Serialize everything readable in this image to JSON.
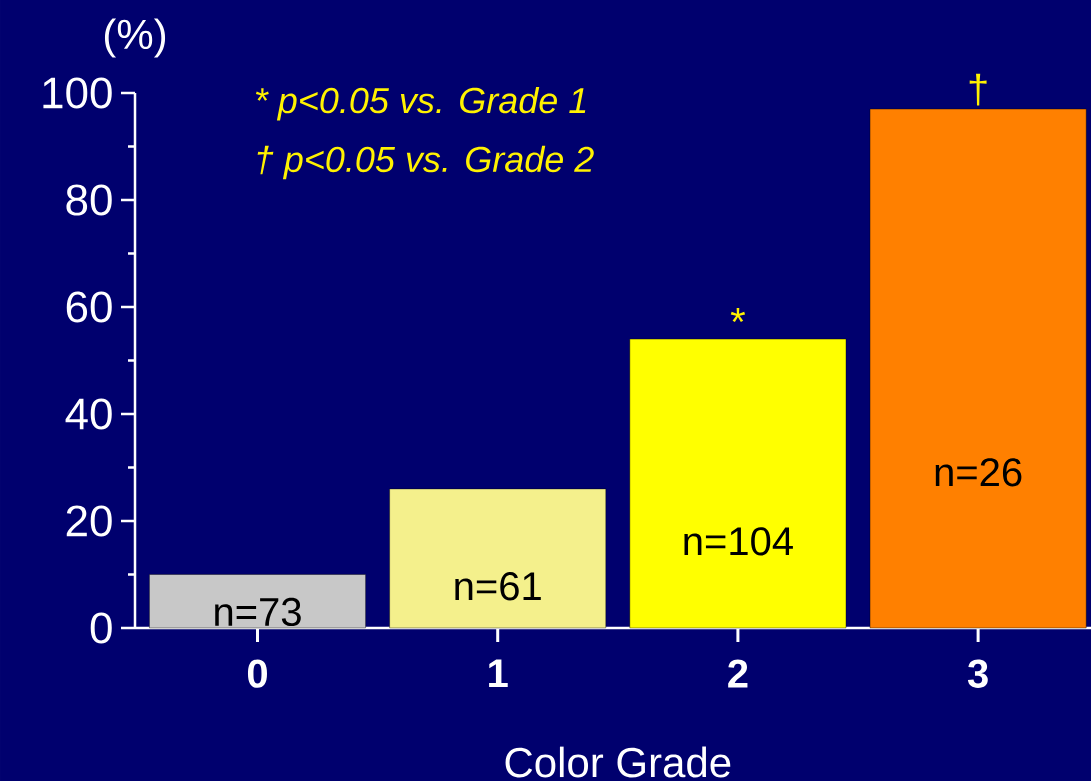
{
  "chart_data": {
    "type": "bar",
    "categories": [
      "0",
      "1",
      "2",
      "3"
    ],
    "values": [
      10,
      26,
      54,
      97
    ],
    "colors": [
      "#c8c8c8",
      "#f4f08c",
      "#ffff00",
      "#ff8000"
    ],
    "ylabel": "(%)",
    "xlabel": "Color Grade",
    "ylim": [
      0,
      100
    ],
    "yticks": [
      0,
      20,
      40,
      60,
      80,
      100
    ],
    "annotations": [
      "* p<0.05 vs. Grade 1",
      "† p<0.05 vs. Grade 2",
      "n=73",
      "n=61",
      "n=104",
      "n=26",
      {
        "text": "*",
        "x": "2",
        "y": 54
      },
      {
        "text": "†",
        "x": "3",
        "y": 97
      }
    ],
    "grid": false
  }
}
